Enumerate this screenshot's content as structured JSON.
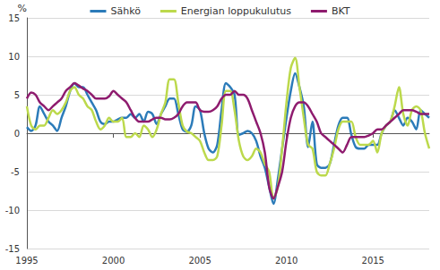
{
  "chart_data": {
    "type": "line",
    "ylabel": "%",
    "xlim": [
      1995,
      2018.25
    ],
    "xticks": [
      1995,
      2000,
      2005,
      2010,
      2015
    ],
    "ylim": [
      -15,
      15
    ],
    "yticks": [
      -15,
      -10,
      -5,
      0,
      5,
      10,
      15
    ],
    "grid": true,
    "legend": "top",
    "x": [
      1995,
      1995.25,
      1995.5,
      1995.75,
      1996,
      1996.25,
      1996.5,
      1996.75,
      1997,
      1997.25,
      1997.5,
      1997.75,
      1998,
      1998.25,
      1998.5,
      1998.75,
      1999,
      1999.25,
      1999.5,
      1999.75,
      2000,
      2000.25,
      2000.5,
      2000.75,
      2001,
      2001.25,
      2001.5,
      2001.75,
      2002,
      2002.25,
      2002.5,
      2002.75,
      2003,
      2003.25,
      2003.5,
      2003.75,
      2004,
      2004.25,
      2004.5,
      2004.75,
      2005,
      2005.25,
      2005.5,
      2005.75,
      2006,
      2006.25,
      2006.5,
      2006.75,
      2007,
      2007.25,
      2007.5,
      2007.75,
      2008,
      2008.25,
      2008.5,
      2008.75,
      2009,
      2009.25,
      2009.5,
      2009.75,
      2010,
      2010.25,
      2010.5,
      2010.75,
      2011,
      2011.25,
      2011.5,
      2011.75,
      2012,
      2012.25,
      2012.5,
      2012.75,
      2013,
      2013.25,
      2013.5,
      2013.75,
      2014,
      2014.25,
      2014.5,
      2014.75,
      2015,
      2015.25,
      2015.5,
      2015.75,
      2016,
      2016.25,
      2016.5,
      2016.75,
      2017,
      2017.25,
      2017.5,
      2017.75,
      2018,
      2018.25
    ],
    "series": [
      {
        "name": "Sähkö",
        "color": "#2b7bb9",
        "values": [
          0.8,
          0.3,
          1,
          3.5,
          2.5,
          1.5,
          1,
          0.3,
          2,
          3.5,
          5.5,
          6.5,
          6,
          6,
          5,
          4,
          3,
          1.5,
          1.2,
          1.5,
          1.5,
          1.8,
          2,
          2,
          2.5,
          2,
          2.5,
          1.5,
          2.8,
          2.5,
          1.2,
          2.5,
          3.5,
          4.5,
          4.5,
          2.5,
          0.5,
          0.2,
          1,
          3.5,
          3,
          0,
          -2,
          -2.5,
          -1.5,
          3,
          6.5,
          6,
          5,
          -0.2,
          0,
          0.3,
          0,
          -1,
          -3,
          -4.5,
          -7,
          -9.2,
          -6,
          -2,
          2,
          5.5,
          7.8,
          6,
          3.5,
          -1.8,
          1.5,
          -4,
          -4.5,
          -4.5,
          -4,
          -1.5,
          1,
          2,
          2,
          -0.2,
          -1.8,
          -2,
          -2,
          -1.5,
          -1.5,
          -1.5,
          0,
          1,
          1.5,
          3,
          2,
          1,
          2,
          1.5,
          0.5,
          3,
          2.5,
          2
        ]
      },
      {
        "name": "Energian loppukulutus",
        "color": "#bcd94c",
        "values": [
          3.5,
          1,
          0.5,
          1,
          1,
          2,
          3,
          2.5,
          3,
          4,
          5.5,
          6,
          5,
          4.5,
          3.5,
          3,
          1.5,
          0.5,
          1,
          2,
          1.5,
          1.5,
          2,
          -0.5,
          -0.5,
          0,
          -0.5,
          1,
          0.5,
          -0.5,
          0.5,
          2.5,
          4,
          7,
          7,
          4,
          1,
          0.2,
          0,
          -0.5,
          -1,
          -2.5,
          -3.5,
          -3.5,
          -3,
          1,
          5.5,
          5.5,
          3,
          -1,
          -3,
          -3.5,
          -3,
          -2,
          -2.5,
          -4,
          -5,
          -8.5,
          -7,
          -2,
          4,
          8.5,
          9.8,
          6,
          2,
          -1.5,
          -2,
          -5,
          -5.5,
          -5.5,
          -4,
          -2,
          0.5,
          1.5,
          1.5,
          1.5,
          -0.5,
          -1.5,
          -1.5,
          -1.5,
          -1,
          -2.5,
          0,
          1,
          1.5,
          3.5,
          6,
          2.5,
          1,
          3,
          3.5,
          3,
          0,
          -2
        ]
      },
      {
        "name": "BKT",
        "color": "#8e1b6e",
        "values": [
          4.5,
          5.3,
          5,
          4,
          3.5,
          3,
          3.5,
          4,
          4.5,
          5.5,
          6,
          6.5,
          6.2,
          5.8,
          5.5,
          5,
          4.5,
          4.5,
          4.5,
          4.8,
          5.5,
          5,
          4.5,
          4,
          3,
          2,
          1.5,
          1.5,
          1.5,
          1.8,
          2,
          2,
          1.8,
          1.8,
          2,
          2.5,
          3.5,
          4,
          4,
          4,
          3,
          2.8,
          2.8,
          3,
          3.5,
          4.5,
          5,
          5,
          5.5,
          5,
          5,
          4.5,
          3,
          1.5,
          0,
          -2.5,
          -7,
          -8.5,
          -7,
          -5,
          -1,
          2,
          3.5,
          4,
          4,
          3.5,
          2.5,
          1.5,
          0,
          -0.5,
          -1,
          -1.5,
          -2,
          -2.5,
          -1.5,
          -0.5,
          -0.5,
          -0.5,
          -0.5,
          -0.3,
          0,
          0.5,
          0.5,
          1,
          1.5,
          2,
          2.5,
          3,
          3,
          3,
          2.8,
          2.5,
          2.5,
          2.5
        ]
      }
    ]
  }
}
